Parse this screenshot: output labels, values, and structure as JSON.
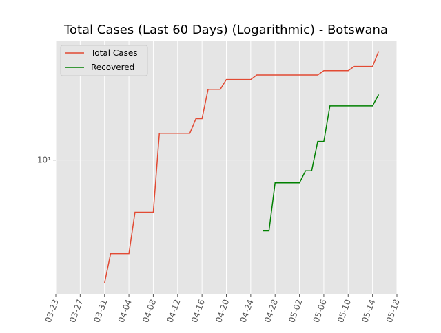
{
  "chart_data": {
    "type": "line",
    "title": "Total Cases (Last 60 Days) (Logarithmic) - Botswana",
    "x": [
      "03-31",
      "04-01",
      "04-02",
      "04-03",
      "04-04",
      "04-05",
      "04-06",
      "04-07",
      "04-08",
      "04-09",
      "04-10",
      "04-11",
      "04-12",
      "04-13",
      "04-14",
      "04-15",
      "04-16",
      "04-17",
      "04-18",
      "04-19",
      "04-20",
      "04-21",
      "04-22",
      "04-23",
      "04-24",
      "04-25",
      "04-26",
      "04-27",
      "04-28",
      "04-29",
      "04-30",
      "05-01",
      "05-02",
      "05-03",
      "05-04",
      "05-05",
      "05-06",
      "05-07",
      "05-08",
      "05-09",
      "05-10",
      "05-11",
      "05-12",
      "05-13",
      "05-14",
      "05-15"
    ],
    "series": [
      {
        "name": "Total Cases",
        "color": "#E24A33",
        "values": [
          3,
          4,
          4,
          4,
          4,
          6,
          6,
          6,
          6,
          13,
          13,
          13,
          13,
          13,
          13,
          15,
          15,
          20,
          20,
          20,
          22,
          22,
          22,
          22,
          22,
          23,
          23,
          23,
          23,
          23,
          23,
          23,
          23,
          23,
          23,
          23,
          24,
          24,
          24,
          24,
          24,
          25,
          25,
          25,
          25,
          29
        ]
      },
      {
        "name": "Recovered",
        "color": "#008000",
        "values": [
          null,
          null,
          null,
          null,
          null,
          null,
          null,
          null,
          null,
          null,
          null,
          null,
          null,
          null,
          null,
          null,
          null,
          null,
          null,
          null,
          null,
          null,
          null,
          null,
          null,
          null,
          5,
          5,
          8,
          8,
          8,
          8,
          8,
          9,
          9,
          12,
          12,
          17,
          17,
          17,
          17,
          17,
          17,
          17,
          17,
          19
        ]
      }
    ],
    "xlim": [
      "03-23",
      "05-18"
    ],
    "xticks": [
      "03-23",
      "03-27",
      "03-31",
      "04-04",
      "04-08",
      "04-12",
      "04-16",
      "04-20",
      "04-24",
      "04-28",
      "05-02",
      "05-06",
      "05-10",
      "05-14",
      "05-18"
    ],
    "ylim": [
      2.7,
      32
    ],
    "log_y": true,
    "yticks": [
      {
        "value": 10,
        "label": "10¹"
      }
    ],
    "grid": true,
    "legend": "upper left"
  }
}
